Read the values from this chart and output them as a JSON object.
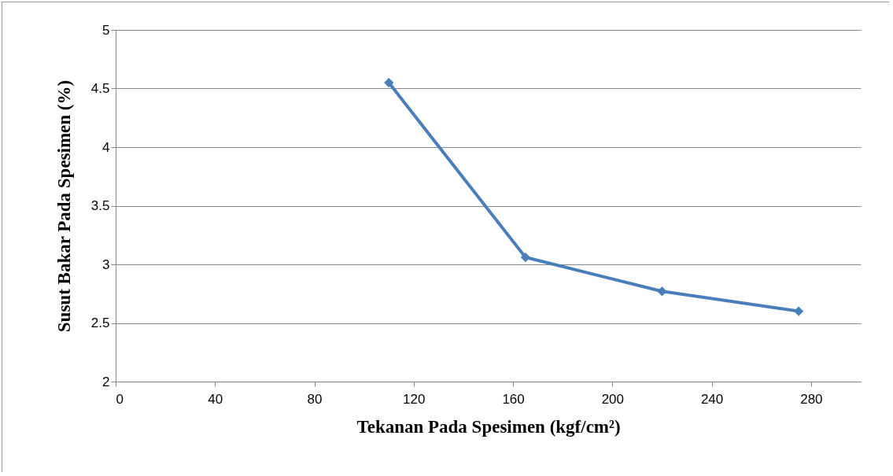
{
  "chart_data": {
    "type": "line",
    "xlabel": "Tekanan Pada Spesimen (kgf/cm²)",
    "ylabel": "Susut Bakar Pada Spesimen  (%)",
    "x": [
      110,
      165,
      220,
      275
    ],
    "series": [
      {
        "color": "#4a7ebb",
        "values": [
          4.55,
          3.06,
          2.77,
          2.6
        ]
      }
    ],
    "xlim": [
      0,
      300
    ],
    "xticks": [
      0,
      40,
      80,
      120,
      160,
      200,
      240,
      280
    ],
    "ylim": [
      2,
      5
    ],
    "yticks": [
      2,
      2.5,
      3,
      3.5,
      4,
      4.5,
      5
    ],
    "grid": "y",
    "marker": "diamond",
    "line_style": "solid",
    "legend": false
  }
}
